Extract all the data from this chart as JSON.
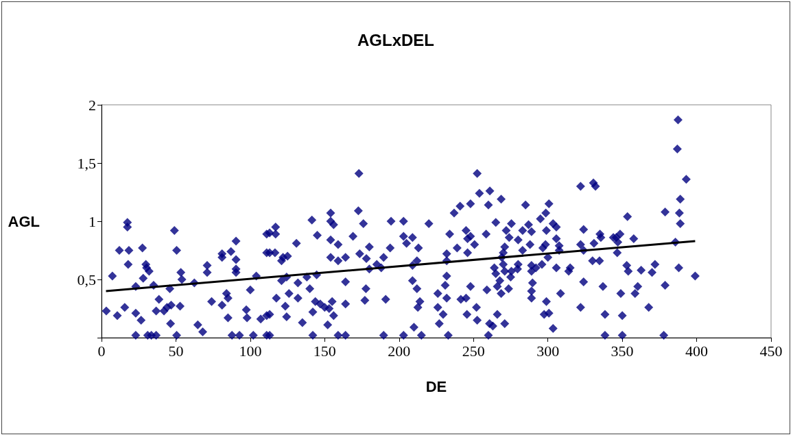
{
  "chart_data": {
    "type": "scatter",
    "title": "AGLxDEL",
    "xlabel": "DE",
    "ylabel": "AGL",
    "xlim": [
      0,
      450
    ],
    "xticks": [
      0,
      50,
      100,
      150,
      200,
      250,
      300,
      350,
      400,
      450
    ],
    "ylim": [
      0,
      2
    ],
    "yticks": [
      {
        "value": 0,
        "label": null
      },
      {
        "value": 0.5,
        "label": "0,5"
      },
      {
        "value": 1,
        "label": "1"
      },
      {
        "value": 1.5,
        "label": "1,5"
      },
      2
    ],
    "grid": false,
    "series": [
      {
        "color": "#000080",
        "marker": "diamond",
        "x": [
          3.2,
          7.3,
          10.6,
          12,
          15.6,
          17.4,
          17.4,
          18.4,
          17.9,
          23,
          23,
          23,
          26.6,
          27.5,
          28,
          29.8,
          30.3,
          32,
          31,
          33.5,
          36.7,
          35,
          38.6,
          36.7,
          42,
          44,
          46.8,
          45.9,
          46.4,
          49,
          50.5,
          50.5,
          52.8,
          53.3,
          54,
          62.4,
          64.7,
          68,
          71,
          71,
          74,
          81,
          81,
          81,
          84,
          85,
          85,
          87,
          90.4,
          90.4,
          90.4,
          90.4,
          87.7,
          92.7,
          97.3,
          97.8,
          100,
          102,
          104,
          107,
          111,
          111,
          111,
          111,
          113,
          117,
          117,
          113,
          116.6,
          121,
          122,
          125,
          121,
          124.4,
          126,
          117.5,
          123.5,
          124.4,
          113,
          113,
          131,
          132,
          132,
          138,
          140,
          135,
          141.4,
          145,
          144.6,
          143.7,
          142,
          147,
          150,
          153,
          142,
          152,
          156,
          155,
          154,
          154,
          156,
          154,
          154,
          159,
          159,
          164,
          164,
          164,
          159,
          164,
          169,
          172.6,
          173,
          173.5,
          176,
          178,
          180,
          180,
          177.7,
          177,
          185,
          188,
          189.6,
          194,
          194.6,
          191,
          189.6,
          203,
          203,
          205,
          209,
          213,
          209,
          212,
          209,
          212,
          214,
          212.6,
          210,
          203,
          215,
          220,
          226,
          226,
          229.6,
          227,
          231,
          232,
          232,
          232,
          232,
          234,
          233,
          237,
          241,
          239,
          241.5,
          245,
          245.6,
          245,
          246,
          248,
          246,
          250.7,
          248,
          248,
          252,
          252.5,
          252.5,
          254,
          261,
          260,
          258.5,
          259,
          260.8,
          263,
          260,
          265,
          266,
          268.6,
          271,
          264,
          265,
          267.7,
          266,
          268.6,
          269,
          270,
          271,
          270,
          271,
          273.6,
          275,
          275.5,
          272,
          275.5,
          274,
          280,
          279.6,
          280,
          283,
          283,
          285,
          287,
          288,
          289,
          289,
          289,
          289.7,
          289,
          289,
          292,
          295,
          296.6,
          296,
          298.6,
          300.7,
          299,
          298.4,
          300,
          299,
          297.5,
          300.7,
          303.5,
          303.5,
          305.7,
          305.7,
          307.6,
          307.6,
          305.7,
          308.5,
          315,
          314,
          322,
          324,
          322,
          324,
          324,
          322,
          330.6,
          331,
          332,
          330,
          334.7,
          335.6,
          335,
          337,
          338.4,
          338.4,
          344,
          346,
          348.5,
          347,
          346.6,
          353.5,
          357.7,
          353,
          354,
          349,
          350,
          350,
          362.7,
          360.4,
          358.6,
          370,
          372,
          367.8,
          378.8,
          378.8,
          377.9,
          385.7,
          388,
          387.5,
          387,
          393,
          389,
          388.4,
          389,
          399
        ],
        "values": [
          0.23,
          0.53,
          0.19,
          0.75,
          0.26,
          0.99,
          0.95,
          0.75,
          0.63,
          0.44,
          0.21,
          0.02,
          0.15,
          0.77,
          0.51,
          0.63,
          0.6,
          0.57,
          0.02,
          0.02,
          0.02,
          0.45,
          0.33,
          0.23,
          0.23,
          0.26,
          0.28,
          0.42,
          0.12,
          0.92,
          0.75,
          0.02,
          0.27,
          0.56,
          0.5,
          0.47,
          0.11,
          0.05,
          0.62,
          0.56,
          0.31,
          0.72,
          0.69,
          0.28,
          0.38,
          0.34,
          0.17,
          0.74,
          0.83,
          0.67,
          0.59,
          0.56,
          0.02,
          0.02,
          0.24,
          0.17,
          0.41,
          0.02,
          0.53,
          0.16,
          0.89,
          0.73,
          0.19,
          0.02,
          0.9,
          0.95,
          0.89,
          0.73,
          0.73,
          0.66,
          0.69,
          0.7,
          0.49,
          0.52,
          0.38,
          0.34,
          0.27,
          0.18,
          0.2,
          0.02,
          0.81,
          0.47,
          0.34,
          0.52,
          0.42,
          0.13,
          1.01,
          0.88,
          0.54,
          0.31,
          0.22,
          0.29,
          0.26,
          0.25,
          0.02,
          0.11,
          0.19,
          0.31,
          1.07,
          1.0,
          0.97,
          0.84,
          0.69,
          0.8,
          0.66,
          0.69,
          0.48,
          0.29,
          0.02,
          0.02,
          0.87,
          1.09,
          1.41,
          0.72,
          0.98,
          0.68,
          0.78,
          0.59,
          0.42,
          0.32,
          0.63,
          0.6,
          0.69,
          0.77,
          1.0,
          0.33,
          0.02,
          1.0,
          0.87,
          0.81,
          0.86,
          0.77,
          0.62,
          0.66,
          0.49,
          0.42,
          0.31,
          0.26,
          0.09,
          0.02,
          0.02,
          0.98,
          0.38,
          0.26,
          0.2,
          0.12,
          0.45,
          0.53,
          0.34,
          0.66,
          0.72,
          0.89,
          0.02,
          1.07,
          1.13,
          0.77,
          0.33,
          0.34,
          0.2,
          0.92,
          0.85,
          0.87,
          0.73,
          0.8,
          1.15,
          0.44,
          0.26,
          0.15,
          1.41,
          1.24,
          1.26,
          1.14,
          0.89,
          0.41,
          0.12,
          0.1,
          0.02,
          0.99,
          0.2,
          1.19,
          0.12,
          0.6,
          0.55,
          0.49,
          0.44,
          0.38,
          0.69,
          0.73,
          0.78,
          0.63,
          0.57,
          0.42,
          0.52,
          0.57,
          0.92,
          0.98,
          0.86,
          0.84,
          0.59,
          0.63,
          0.92,
          0.75,
          1.14,
          0.97,
          0.8,
          0.91,
          0.62,
          0.57,
          0.47,
          0.4,
          0.34,
          0.6,
          1.02,
          0.77,
          0.63,
          1.07,
          1.15,
          0.92,
          0.8,
          0.69,
          0.31,
          0.2,
          0.21,
          0.08,
          0.98,
          0.95,
          0.85,
          0.79,
          0.75,
          0.6,
          0.38,
          0.6,
          0.57,
          1.3,
          0.93,
          0.8,
          0.75,
          0.48,
          0.26,
          1.33,
          0.81,
          1.3,
          0.66,
          0.66,
          0.86,
          0.89,
          0.44,
          0.2,
          0.02,
          0.86,
          0.86,
          0.89,
          0.82,
          0.73,
          1.04,
          0.85,
          0.62,
          0.57,
          0.38,
          0.19,
          0.02,
          0.58,
          0.44,
          0.38,
          0.56,
          0.63,
          0.26,
          1.08,
          0.45,
          0.02,
          0.82,
          0.6,
          1.87,
          1.62,
          1.36,
          1.19,
          1.07,
          0.98,
          0.53
        ]
      },
      {
        "type": "line",
        "marker": "none",
        "color": "#000000",
        "x": [
          3,
          399
        ],
        "values": [
          0.4,
          0.83
        ]
      }
    ]
  }
}
